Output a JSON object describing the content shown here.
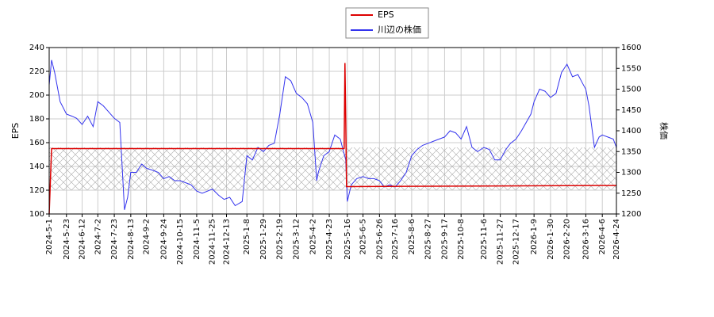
{
  "chart_data": {
    "type": "line",
    "ylabel": "EPS",
    "y2label": "株価",
    "xlim": [
      "2024-5-1",
      "2026-4-24"
    ],
    "xticks": [
      "2024-5-1",
      "2024-5-23",
      "2024-6-12",
      "2024-7-2",
      "2024-7-23",
      "2024-8-13",
      "2024-9-2",
      "2024-9-24",
      "2024-10-15",
      "2024-11-5",
      "2024-11-25",
      "2024-12-13",
      "2025-1-8",
      "2025-1-29",
      "2025-2-19",
      "2025-3-12",
      "2025-4-2",
      "2025-4-23",
      "2025-5-16",
      "2025-6-5",
      "2025-6-26",
      "2025-7-16",
      "2025-8-6",
      "2025-8-27",
      "2025-9-17",
      "2025-10-8",
      "2025-11-6",
      "2025-11-27",
      "2025-12-17",
      "2026-1-9",
      "2026-1-30",
      "2026-2-20",
      "2026-3-16",
      "2026-4-6",
      "2026-4-24"
    ],
    "ylim": [
      100,
      240
    ],
    "yticks": [
      100,
      120,
      140,
      160,
      180,
      200,
      220,
      240
    ],
    "y2lim": [
      1200,
      1600
    ],
    "y2ticks": [
      1200,
      1250,
      1300,
      1350,
      1400,
      1450,
      1500,
      1550,
      1600
    ],
    "grid": true,
    "legend": "top",
    "series": [
      {
        "name": "EPS",
        "color": "#dd0000",
        "x": [
          "2024-5-1",
          "2024-5-4",
          "2025-5-12",
          "2025-5-13",
          "2025-5-14",
          "2025-5-15",
          "2026-4-24"
        ],
        "values": [
          100,
          155,
          155,
          227,
          180,
          123,
          124
        ]
      },
      {
        "name": "川辺の株価",
        "color": "#3333ee",
        "axis": "y2",
        "x": [
          "2024-5-1",
          "2024-5-4",
          "2024-5-8",
          "2024-5-15",
          "2024-5-23",
          "2024-5-30",
          "2024-6-5",
          "2024-6-12",
          "2024-6-19",
          "2024-6-26",
          "2024-7-2",
          "2024-7-9",
          "2024-7-16",
          "2024-7-23",
          "2024-7-30",
          "2024-8-5",
          "2024-8-9",
          "2024-8-13",
          "2024-8-20",
          "2024-8-27",
          "2024-9-2",
          "2024-9-10",
          "2024-9-17",
          "2024-9-24",
          "2024-10-1",
          "2024-10-8",
          "2024-10-15",
          "2024-10-22",
          "2024-10-29",
          "2024-11-5",
          "2024-11-12",
          "2024-11-19",
          "2024-11-25",
          "2024-12-3",
          "2024-12-10",
          "2024-12-17",
          "2024-12-24",
          "2025-1-2",
          "2025-1-8",
          "2025-1-15",
          "2025-1-22",
          "2025-1-29",
          "2025-2-5",
          "2025-2-12",
          "2025-2-19",
          "2025-2-26",
          "2025-3-5",
          "2025-3-12",
          "2025-3-19",
          "2025-3-26",
          "2025-4-2",
          "2025-4-7",
          "2025-4-9",
          "2025-4-16",
          "2025-4-23",
          "2025-4-30",
          "2025-5-7",
          "2025-5-14",
          "2025-5-16",
          "2025-5-21",
          "2025-5-28",
          "2025-6-5",
          "2025-6-12",
          "2025-6-19",
          "2025-6-26",
          "2025-7-2",
          "2025-7-9",
          "2025-7-16",
          "2025-7-23",
          "2025-7-30",
          "2025-8-6",
          "2025-8-13",
          "2025-8-20",
          "2025-8-27",
          "2025-9-3",
          "2025-9-10",
          "2025-9-17",
          "2025-9-24",
          "2025-10-1",
          "2025-10-8",
          "2025-10-15",
          "2025-10-22",
          "2025-10-29",
          "2025-11-6",
          "2025-11-13",
          "2025-11-20",
          "2025-11-27",
          "2025-12-4",
          "2025-12-10",
          "2025-12-17",
          "2025-12-24",
          "2026-1-5",
          "2026-1-9",
          "2026-1-16",
          "2026-1-23",
          "2026-1-30",
          "2026-2-6",
          "2026-2-13",
          "2026-2-20",
          "2026-2-27",
          "2026-3-6",
          "2026-3-13",
          "2026-3-16",
          "2026-3-20",
          "2026-3-27",
          "2026-4-2",
          "2026-4-6",
          "2026-4-13",
          "2026-4-20",
          "2026-4-24"
        ],
        "values": [
          1510,
          1570,
          1540,
          1470,
          1440,
          1435,
          1430,
          1415,
          1435,
          1410,
          1470,
          1460,
          1445,
          1430,
          1420,
          1210,
          1240,
          1300,
          1300,
          1320,
          1310,
          1305,
          1300,
          1285,
          1290,
          1280,
          1280,
          1275,
          1270,
          1255,
          1250,
          1255,
          1260,
          1245,
          1235,
          1240,
          1220,
          1230,
          1340,
          1330,
          1360,
          1350,
          1365,
          1370,
          1440,
          1530,
          1520,
          1490,
          1480,
          1465,
          1420,
          1280,
          1300,
          1340,
          1350,
          1390,
          1380,
          1330,
          1230,
          1270,
          1285,
          1290,
          1285,
          1285,
          1280,
          1265,
          1270,
          1265,
          1280,
          1300,
          1340,
          1355,
          1365,
          1370,
          1375,
          1380,
          1385,
          1400,
          1395,
          1380,
          1410,
          1360,
          1350,
          1360,
          1355,
          1330,
          1330,
          1355,
          1370,
          1380,
          1400,
          1440,
          1470,
          1500,
          1495,
          1480,
          1490,
          1540,
          1560,
          1530,
          1535,
          1510,
          1500,
          1460,
          1360,
          1385,
          1390,
          1385,
          1380,
          1360
        ]
      }
    ]
  }
}
